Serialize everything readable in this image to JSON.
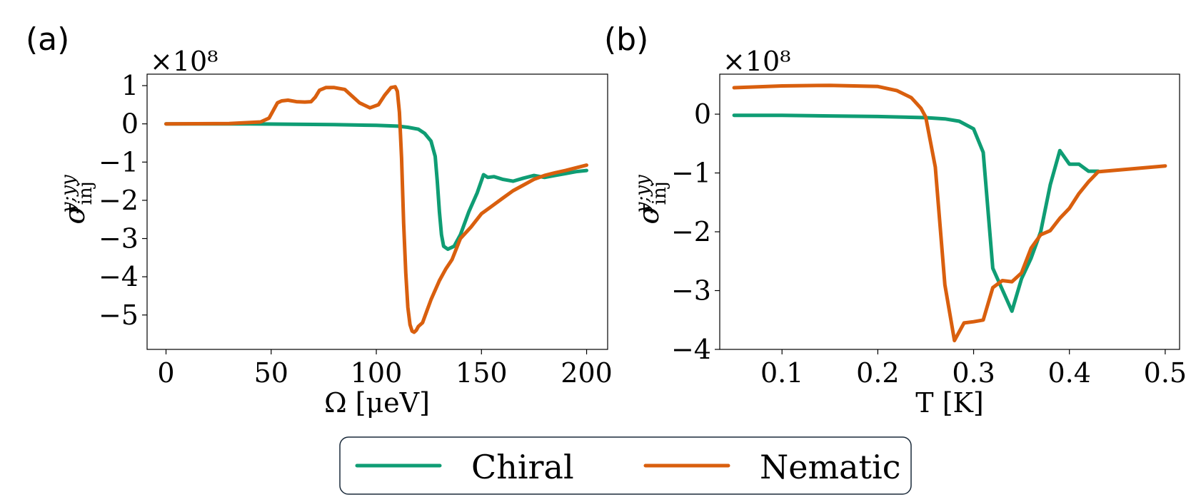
{
  "colors": {
    "chiral": "#0f9d74",
    "nematic": "#d95f0e"
  },
  "legend": {
    "entries": [
      "Chiral",
      "Nematic"
    ],
    "placement": "bottom-center"
  },
  "chart_data": [
    {
      "panel": "(a)",
      "type": "line",
      "xlabel": "Ω [μeV]",
      "ylabel": "σ",
      "ylabel_sub": "inj",
      "ylabel_sup": "y;yy",
      "y_scale_label": "×10⁸",
      "xlim": [
        -9,
        210
      ],
      "ylim": [
        -5.9,
        1.3
      ],
      "xticks": [
        0,
        50,
        100,
        150,
        200
      ],
      "xtick_labels": [
        "0",
        "50",
        "100",
        "150",
        "200"
      ],
      "yticks": [
        1,
        0,
        -1,
        -2,
        -3,
        -4,
        -5
      ],
      "ytick_labels": [
        "1",
        "0",
        "−1",
        "−2",
        "−3",
        "−4",
        "−5"
      ],
      "series": [
        {
          "name": "Chiral",
          "x": [
            0,
            40,
            60,
            80,
            100,
            110,
            115,
            120,
            123,
            126,
            128,
            129,
            130,
            131,
            132,
            134,
            137,
            140,
            144,
            148,
            151,
            153,
            156,
            160,
            165,
            170,
            175,
            180,
            185,
            190,
            195,
            200
          ],
          "y": [
            0,
            0,
            -0.01,
            -0.02,
            -0.04,
            -0.06,
            -0.09,
            -0.14,
            -0.25,
            -0.45,
            -0.85,
            -1.5,
            -2.3,
            -2.9,
            -3.2,
            -3.28,
            -3.2,
            -2.9,
            -2.3,
            -1.8,
            -1.33,
            -1.4,
            -1.38,
            -1.45,
            -1.5,
            -1.42,
            -1.35,
            -1.4,
            -1.35,
            -1.3,
            -1.25,
            -1.22
          ]
        },
        {
          "name": "Nematic",
          "x": [
            0,
            30,
            45,
            49,
            51,
            53,
            55,
            58,
            62,
            66,
            69,
            71,
            73,
            76,
            80,
            85,
            88,
            92,
            97,
            101,
            104,
            107,
            109,
            110,
            111,
            112,
            113,
            114,
            115,
            116,
            117,
            118,
            119,
            120,
            122,
            124,
            126,
            130,
            133,
            136,
            140,
            145,
            150,
            155,
            160,
            165,
            170,
            175,
            180,
            185,
            190,
            195,
            200
          ],
          "y": [
            0,
            0.01,
            0.05,
            0.15,
            0.35,
            0.55,
            0.6,
            0.62,
            0.58,
            0.57,
            0.58,
            0.7,
            0.88,
            0.95,
            0.95,
            0.9,
            0.75,
            0.55,
            0.42,
            0.5,
            0.75,
            0.95,
            0.97,
            0.85,
            0.3,
            -0.9,
            -2.6,
            -3.9,
            -4.8,
            -5.25,
            -5.42,
            -5.45,
            -5.4,
            -5.3,
            -5.2,
            -4.9,
            -4.6,
            -4.1,
            -3.8,
            -3.55,
            -3.0,
            -2.7,
            -2.35,
            -2.15,
            -1.95,
            -1.75,
            -1.6,
            -1.45,
            -1.35,
            -1.28,
            -1.22,
            -1.15,
            -1.08
          ]
        }
      ]
    },
    {
      "panel": "(b)",
      "type": "line",
      "xlabel": "T [K]",
      "ylabel": "σ",
      "ylabel_sub": "inj",
      "ylabel_sup": "y;yy",
      "y_scale_label": "×10⁸",
      "xlim": [
        0.035,
        0.515
      ],
      "ylim": [
        -4.0,
        0.68
      ],
      "xticks": [
        0.1,
        0.2,
        0.3,
        0.4,
        0.5
      ],
      "xtick_labels": [
        "0.1",
        "0.2",
        "0.3",
        "0.4",
        "0.5"
      ],
      "yticks": [
        0,
        -1,
        -2,
        -3,
        -4
      ],
      "ytick_labels": [
        "0",
        "−1",
        "−2",
        "−3",
        "−4"
      ],
      "series": [
        {
          "name": "Chiral",
          "x": [
            0.05,
            0.1,
            0.15,
            0.2,
            0.25,
            0.27,
            0.285,
            0.3,
            0.31,
            0.32,
            0.34,
            0.35,
            0.36,
            0.37,
            0.38,
            0.39,
            0.4,
            0.41,
            0.42,
            0.43
          ],
          "y": [
            -0.02,
            -0.02,
            -0.03,
            -0.04,
            -0.06,
            -0.08,
            -0.12,
            -0.25,
            -0.65,
            -2.62,
            -3.35,
            -2.8,
            -2.45,
            -2.0,
            -1.2,
            -0.62,
            -0.85,
            -0.85,
            -0.97,
            -0.97
          ]
        },
        {
          "name": "Nematic",
          "x": [
            0.05,
            0.1,
            0.15,
            0.2,
            0.22,
            0.235,
            0.245,
            0.25,
            0.26,
            0.27,
            0.28,
            0.29,
            0.3,
            0.31,
            0.32,
            0.33,
            0.34,
            0.35,
            0.36,
            0.37,
            0.38,
            0.39,
            0.4,
            0.41,
            0.42,
            0.43,
            0.5
          ],
          "y": [
            0.45,
            0.48,
            0.49,
            0.47,
            0.4,
            0.28,
            0.1,
            -0.05,
            -0.9,
            -2.9,
            -3.85,
            -3.55,
            -3.53,
            -3.5,
            -2.95,
            -2.83,
            -2.85,
            -2.7,
            -2.28,
            -2.05,
            -1.98,
            -1.77,
            -1.6,
            -1.35,
            -1.15,
            -0.98,
            -0.88
          ]
        }
      ]
    }
  ]
}
